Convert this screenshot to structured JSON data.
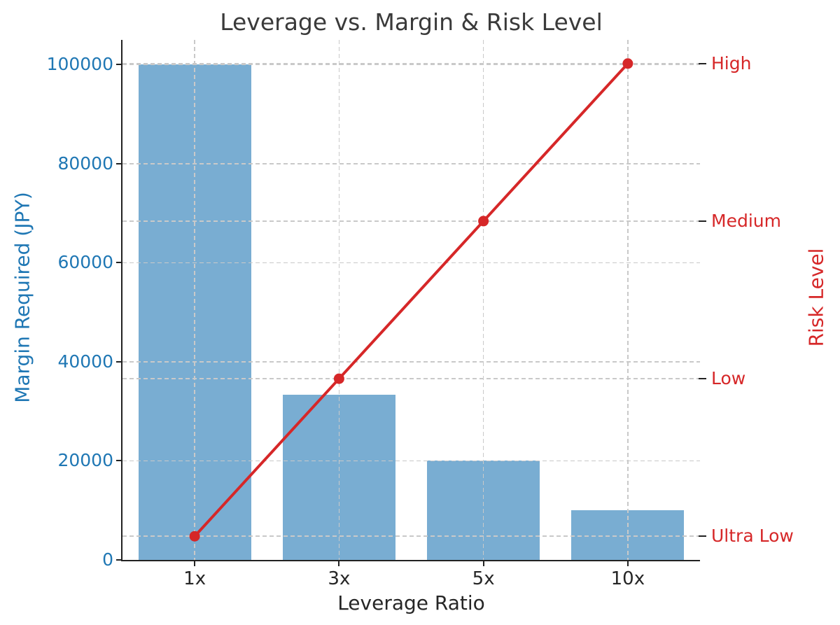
{
  "chart_data": {
    "type": "bar",
    "subtype": "bar-and-line-dual-axis",
    "title": "Leverage vs. Margin & Risk Level",
    "xlabel": "Leverage Ratio",
    "categories": [
      "1x",
      "3x",
      "5x",
      "10x"
    ],
    "series": [
      {
        "name": "Margin Required (JPY)",
        "type": "bar",
        "axis": "left",
        "values": [
          100000,
          33333,
          20000,
          10000
        ],
        "color": "#79add2"
      },
      {
        "name": "Risk Level",
        "type": "line",
        "axis": "right",
        "values": [
          1,
          2,
          3,
          4
        ],
        "point_labels": [
          "Ultra Low",
          "Low",
          "Medium",
          "High"
        ],
        "color": "#d62728",
        "marker": "circle"
      }
    ],
    "left_axis": {
      "label": "Margin Required (JPY)",
      "ticks": [
        0,
        20000,
        40000,
        60000,
        80000,
        100000
      ],
      "tick_labels": [
        "0",
        "20000",
        "40000",
        "60000",
        "80000",
        "100000"
      ],
      "min": 0,
      "max": 105000,
      "text_color": "#1f77b4"
    },
    "right_axis": {
      "label": "Risk Level",
      "ticks": [
        1,
        2,
        3,
        4
      ],
      "tick_labels": [
        "Ultra Low",
        "Low",
        "Medium",
        "High"
      ],
      "min": 0.85,
      "max": 4.15,
      "text_color": "#d62728"
    },
    "grid": true,
    "grid_style": "dashed",
    "legend": false
  },
  "style": {
    "background": "#ffffff",
    "bar_color": "#79add2",
    "line_color": "#d62728",
    "blue_text": "#1f77b4",
    "red_text": "#d62728",
    "grid_color": "#c9c9c9",
    "spine_color": "#222222",
    "title_color": "#3a3a3a"
  }
}
